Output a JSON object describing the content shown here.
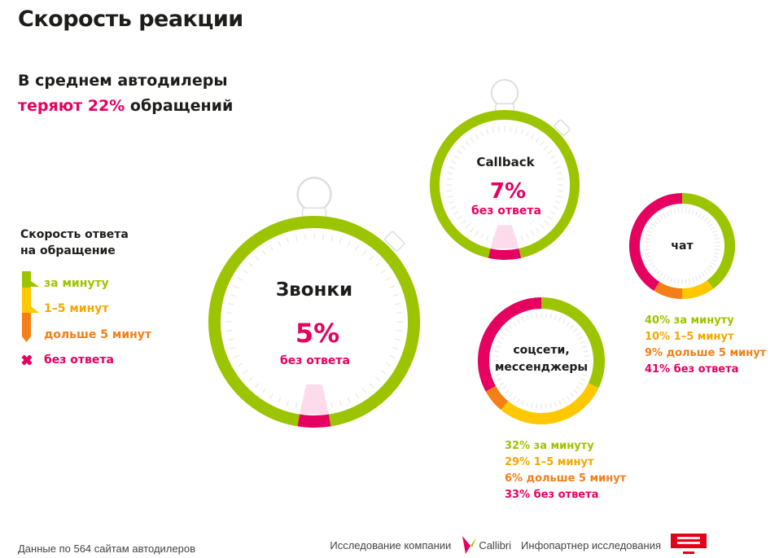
{
  "title": "Скорость реакции",
  "subtitle": {
    "line1": "В среднем автодилеры",
    "line2_highlight": "теряют 22%",
    "line2_rest": " обращений"
  },
  "legend": {
    "title_line1": "Скорость ответа",
    "title_line2": "на обращение",
    "items": [
      {
        "label": "за минуту",
        "color": "#9dc400"
      },
      {
        "label": "1–5 минут",
        "color": "#ffc800"
      },
      {
        "label": "дольше 5 минут",
        "color": "#f57f17"
      },
      {
        "label": "без ответа",
        "color": "#e6005f"
      }
    ]
  },
  "colors": {
    "green": "#9dc400",
    "yellow": "#ffc800",
    "orange": "#f57f17",
    "pink": "#e6005f",
    "light_pink": "#fcdcec",
    "gray": "#d8d8d8"
  },
  "chart_data": [
    {
      "type": "pie",
      "title": "Звонки",
      "big_value": "5%",
      "big_caption": "без ответа",
      "categories": [
        "ответ",
        "без ответа"
      ],
      "values": [
        95,
        5
      ]
    },
    {
      "type": "pie",
      "title": "Callback",
      "big_value": "7%",
      "big_caption": "без ответа",
      "categories": [
        "ответ",
        "без ответа"
      ],
      "values": [
        93,
        7
      ]
    },
    {
      "type": "pie",
      "title": "чат",
      "categories": [
        "за минуту",
        "1–5 минут",
        "дольше 5 минут",
        "без ответа"
      ],
      "values": [
        40,
        10,
        9,
        41
      ],
      "stats": [
        "40% за минуту",
        "10% 1–5 минут",
        "9% дольше 5 минут",
        "41% без ответа"
      ]
    },
    {
      "type": "pie",
      "title": "соцсети,\nмессенджеры",
      "title_line1": "соцсети,",
      "title_line2": "мессенджеры",
      "categories": [
        "за минуту",
        "1–5 минут",
        "дольше 5 минут",
        "без ответа"
      ],
      "values": [
        32,
        29,
        6,
        33
      ],
      "stats": [
        "32% за минуту",
        "29% 1–5 минут",
        "6% дольше 5 минут",
        "33% без ответа"
      ]
    }
  ],
  "footer": {
    "left": "Данные по 564 сайтам автодилеров",
    "research": "Исследование компании",
    "callibri": "Callibri",
    "partner": "Инфопартнер исследования",
    "dk_logo": "Деловой квартал DK.RU"
  }
}
